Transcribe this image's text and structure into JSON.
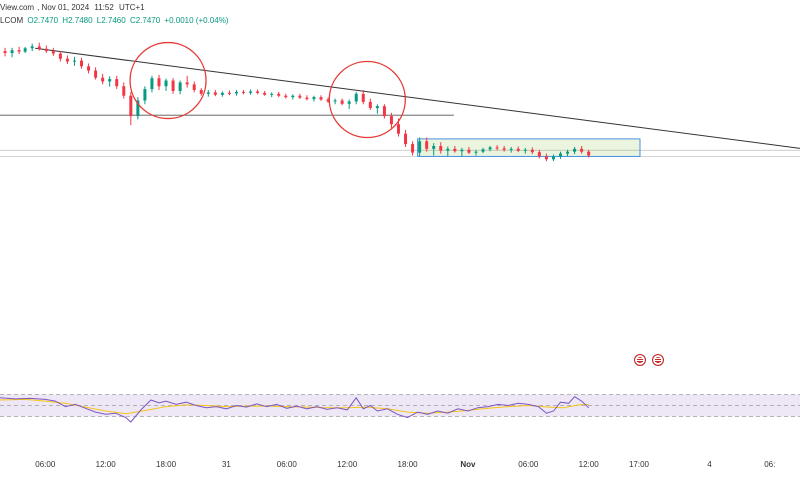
{
  "header": {
    "source": "View.com",
    "date": "Nov 01, 2024",
    "time": "11:52",
    "timezone": "UTC+1"
  },
  "ohlc": {
    "symbol": "LCOM",
    "open": "O2.7470",
    "high": "H2.7480",
    "low": "L2.7460",
    "close": "C2.7470",
    "change": "+0.0010 (+0.04%)"
  },
  "colors": {
    "up": "#089981",
    "down": "#f23645",
    "rsi": "#7e57c2",
    "rsi_ma": "#f5c518",
    "box": "#4a90e2",
    "circle": "#e53935"
  },
  "icons": [
    "us-flag-icon",
    "us-flag-icon"
  ],
  "chart_data": [
    {
      "type": "candlestick",
      "x_tick_labels": [
        "06:00",
        "12:00",
        "18:00",
        "31",
        "06:00",
        "12:00",
        "18:00",
        "Nov",
        "06:00",
        "12:00",
        "17:00",
        "4",
        "06:"
      ],
      "x_ticks_hours": [
        6,
        12,
        18,
        24,
        30,
        36,
        42,
        48,
        54,
        60,
        65,
        72,
        78
      ],
      "x_range_hours": [
        1.5,
        81
      ],
      "y_range": [
        2.733,
        2.7895
      ],
      "candles": [
        [
          2.0,
          2.7842,
          2.7849,
          2.7831,
          2.7838
        ],
        [
          2.7,
          2.7838,
          2.7849,
          2.7829,
          2.7844
        ],
        [
          3.4,
          2.7844,
          2.7851,
          2.7836,
          2.7841
        ],
        [
          4.0,
          2.7841,
          2.7851,
          2.7838,
          2.7848
        ],
        [
          4.7,
          2.7848,
          2.7858,
          2.7842,
          2.7852
        ],
        [
          5.4,
          2.7852,
          2.786,
          2.7843,
          2.7847
        ],
        [
          6.1,
          2.7847,
          2.7854,
          2.7838,
          2.7842
        ],
        [
          6.8,
          2.7842,
          2.7849,
          2.7832,
          2.7837
        ],
        [
          7.5,
          2.7837,
          2.7842,
          2.782,
          2.7826
        ],
        [
          8.2,
          2.7826,
          2.7833,
          2.7815,
          2.782
        ],
        [
          8.9,
          2.782,
          2.783,
          2.7811,
          2.7822
        ],
        [
          9.6,
          2.7822,
          2.7828,
          2.7805,
          2.781
        ],
        [
          10.3,
          2.781,
          2.7816,
          2.7795,
          2.7801
        ],
        [
          11.0,
          2.7801,
          2.7808,
          2.7782,
          2.7786
        ],
        [
          11.7,
          2.7786,
          2.7794,
          2.7772,
          2.7778
        ],
        [
          12.4,
          2.7778,
          2.7789,
          2.7767,
          2.7783
        ],
        [
          13.1,
          2.7783,
          2.779,
          2.7762,
          2.7768
        ],
        [
          13.8,
          2.7768,
          2.7776,
          2.7742,
          2.7748
        ],
        [
          14.5,
          2.7748,
          2.7756,
          2.7686,
          2.7705
        ],
        [
          15.2,
          2.7705,
          2.7745,
          2.7698,
          2.7738
        ],
        [
          15.9,
          2.7738,
          2.7768,
          2.773,
          2.7762
        ],
        [
          16.6,
          2.7762,
          2.779,
          2.7755,
          2.7785
        ],
        [
          17.3,
          2.7785,
          2.7792,
          2.776,
          2.7768
        ],
        [
          18.0,
          2.7768,
          2.7784,
          2.7758,
          2.778
        ],
        [
          18.7,
          2.778,
          2.7785,
          2.7752,
          2.7758
        ],
        [
          19.4,
          2.7758,
          2.778,
          2.7751,
          2.7776
        ],
        [
          20.1,
          2.7776,
          2.779,
          2.7765,
          2.7772
        ],
        [
          20.8,
          2.7772,
          2.7778,
          2.7755,
          2.776
        ],
        [
          21.5,
          2.776,
          2.7764,
          2.7748,
          2.7752
        ],
        [
          22.2,
          2.7752,
          2.776,
          2.7746,
          2.7755
        ],
        [
          22.9,
          2.7755,
          2.776,
          2.7747,
          2.775
        ],
        [
          23.6,
          2.775,
          2.7757,
          2.7746,
          2.7754
        ],
        [
          24.3,
          2.7754,
          2.7759,
          2.7749,
          2.7753
        ],
        [
          25.0,
          2.7753,
          2.776,
          2.7748,
          2.7756
        ],
        [
          25.7,
          2.7756,
          2.776,
          2.7751,
          2.7754
        ],
        [
          26.4,
          2.7754,
          2.7761,
          2.775,
          2.7757
        ],
        [
          27.1,
          2.7757,
          2.7761,
          2.7751,
          2.7754
        ],
        [
          27.8,
          2.7754,
          2.7758,
          2.7748,
          2.775
        ],
        [
          28.5,
          2.775,
          2.7755,
          2.7745,
          2.7752
        ],
        [
          29.2,
          2.7752,
          2.7756,
          2.7745,
          2.7748
        ],
        [
          29.9,
          2.7748,
          2.7752,
          2.7742,
          2.7745
        ],
        [
          30.6,
          2.7745,
          2.7751,
          2.774,
          2.7748
        ],
        [
          31.3,
          2.7748,
          2.7752,
          2.7741,
          2.7744
        ],
        [
          32.0,
          2.7744,
          2.7749,
          2.7738,
          2.7741
        ],
        [
          32.7,
          2.7741,
          2.7748,
          2.7736,
          2.7745
        ],
        [
          33.4,
          2.7745,
          2.7749,
          2.7737,
          2.774
        ],
        [
          34.1,
          2.774,
          2.7744,
          2.7733,
          2.7736
        ],
        [
          34.8,
          2.7736,
          2.7742,
          2.773,
          2.7738
        ],
        [
          35.5,
          2.7738,
          2.7742,
          2.7728,
          2.7731
        ],
        [
          36.2,
          2.7731,
          2.774,
          2.772,
          2.7736
        ],
        [
          36.9,
          2.7736,
          2.7756,
          2.773,
          2.7752
        ],
        [
          37.6,
          2.7752,
          2.776,
          2.773,
          2.7735
        ],
        [
          38.3,
          2.7735,
          2.7742,
          2.7718,
          2.7722
        ],
        [
          39.0,
          2.7722,
          2.773,
          2.771,
          2.7726
        ],
        [
          39.7,
          2.7726,
          2.773,
          2.77,
          2.7705
        ],
        [
          40.4,
          2.7705,
          2.7712,
          2.768,
          2.7688
        ],
        [
          41.1,
          2.7688,
          2.77,
          2.7662,
          2.7668
        ],
        [
          41.8,
          2.7668,
          2.7676,
          2.764,
          2.7646
        ],
        [
          42.5,
          2.7646,
          2.7652,
          2.7622,
          2.7628
        ],
        [
          43.2,
          2.7628,
          2.766,
          2.762,
          2.7652
        ],
        [
          43.9,
          2.7652,
          2.766,
          2.763,
          2.7636
        ],
        [
          44.6,
          2.7636,
          2.7648,
          2.7622,
          2.7642
        ],
        [
          45.3,
          2.7642,
          2.765,
          2.7626,
          2.7632
        ],
        [
          46.0,
          2.7632,
          2.7641,
          2.762,
          2.7636
        ],
        [
          46.7,
          2.7636,
          2.7642,
          2.7628,
          2.7631
        ],
        [
          47.4,
          2.7631,
          2.7638,
          2.762,
          2.7634
        ],
        [
          48.1,
          2.7634,
          2.764,
          2.7625,
          2.7628
        ],
        [
          48.8,
          2.7628,
          2.7634,
          2.7622,
          2.763
        ],
        [
          49.5,
          2.763,
          2.7638,
          2.7627,
          2.7635
        ],
        [
          50.2,
          2.7635,
          2.7642,
          2.7631,
          2.7639
        ],
        [
          50.9,
          2.7639,
          2.7644,
          2.7633,
          2.7637
        ],
        [
          51.6,
          2.7637,
          2.7642,
          2.763,
          2.7634
        ],
        [
          52.3,
          2.7634,
          2.764,
          2.7628,
          2.7636
        ],
        [
          53.0,
          2.7636,
          2.7641,
          2.7629,
          2.7632
        ],
        [
          53.7,
          2.7632,
          2.7638,
          2.7626,
          2.7634
        ],
        [
          54.4,
          2.7634,
          2.7639,
          2.7625,
          2.7629
        ],
        [
          55.1,
          2.7629,
          2.7634,
          2.7616,
          2.762
        ],
        [
          55.8,
          2.762,
          2.7626,
          2.761,
          2.7614
        ],
        [
          56.5,
          2.7614,
          2.7624,
          2.761,
          2.762
        ],
        [
          57.2,
          2.762,
          2.763,
          2.7615,
          2.7626
        ],
        [
          57.9,
          2.7626,
          2.7634,
          2.762,
          2.763
        ],
        [
          58.6,
          2.763,
          2.764,
          2.7625,
          2.7636
        ],
        [
          59.3,
          2.7636,
          2.7642,
          2.7626,
          2.763
        ],
        [
          60.0,
          2.763,
          2.7634,
          2.7618,
          2.7622
        ]
      ],
      "rsi_y_range": [
        0,
        100
      ],
      "rsi": [
        [
          1.5,
          64
        ],
        [
          3,
          62
        ],
        [
          4.5,
          63
        ],
        [
          6,
          61
        ],
        [
          7,
          58
        ],
        [
          8,
          48
        ],
        [
          9,
          52
        ],
        [
          10,
          45
        ],
        [
          11,
          38
        ],
        [
          12,
          34
        ],
        [
          13,
          36
        ],
        [
          14,
          28
        ],
        [
          14.5,
          20
        ],
        [
          15.5,
          42
        ],
        [
          16.5,
          60
        ],
        [
          17.3,
          55
        ],
        [
          18,
          58
        ],
        [
          19,
          52
        ],
        [
          20,
          56
        ],
        [
          21,
          50
        ],
        [
          22,
          46
        ],
        [
          23,
          48
        ],
        [
          24,
          44
        ],
        [
          25,
          50
        ],
        [
          26,
          47
        ],
        [
          27,
          53
        ],
        [
          28,
          48
        ],
        [
          29,
          52
        ],
        [
          30,
          45
        ],
        [
          31,
          49
        ],
        [
          32,
          44
        ],
        [
          33,
          48
        ],
        [
          34,
          43
        ],
        [
          35,
          46
        ],
        [
          36,
          42
        ],
        [
          36.9,
          64
        ],
        [
          37.6,
          44
        ],
        [
          38.3,
          50
        ],
        [
          39,
          40
        ],
        [
          40,
          44
        ],
        [
          41,
          34
        ],
        [
          42,
          28
        ],
        [
          43,
          38
        ],
        [
          44,
          34
        ],
        [
          45,
          40
        ],
        [
          46,
          36
        ],
        [
          47,
          44
        ],
        [
          48,
          40
        ],
        [
          49,
          46
        ],
        [
          50,
          48
        ],
        [
          51,
          52
        ],
        [
          52,
          50
        ],
        [
          53,
          54
        ],
        [
          54,
          52
        ],
        [
          55,
          48
        ],
        [
          55.8,
          36
        ],
        [
          56.5,
          40
        ],
        [
          57.2,
          56
        ],
        [
          58,
          54
        ],
        [
          58.6,
          66
        ],
        [
          59.3,
          58
        ],
        [
          60,
          46
        ]
      ],
      "rsi_ma": [
        [
          1.5,
          60
        ],
        [
          4,
          61
        ],
        [
          6,
          58
        ],
        [
          8,
          54
        ],
        [
          10,
          47
        ],
        [
          12,
          40
        ],
        [
          14,
          35
        ],
        [
          16,
          41
        ],
        [
          18,
          48
        ],
        [
          20,
          51
        ],
        [
          22,
          50
        ],
        [
          24,
          48
        ],
        [
          26,
          49
        ],
        [
          28,
          49
        ],
        [
          30,
          48
        ],
        [
          32,
          47
        ],
        [
          34,
          46
        ],
        [
          36,
          46
        ],
        [
          38,
          47
        ],
        [
          40,
          44
        ],
        [
          42,
          38
        ],
        [
          44,
          36
        ],
        [
          46,
          38
        ],
        [
          48,
          41
        ],
        [
          50,
          45
        ],
        [
          52,
          48
        ],
        [
          54,
          50
        ],
        [
          56,
          47
        ],
        [
          57.5,
          46
        ],
        [
          59,
          51
        ],
        [
          60,
          52
        ]
      ],
      "rsi_bands": [
        70,
        50,
        30
      ],
      "horizontal_line": {
        "value": 2.7707,
        "x_end_hours": 46.6
      },
      "support_line": {
        "value": 2.7633
      },
      "bottom_line": {
        "value": 2.762
      },
      "trendline": {
        "x1": 5,
        "y1": 2.7848,
        "x2": 81,
        "y2": 2.7637
      },
      "highlight_box": {
        "x1": 43.0,
        "x2": 65.1,
        "y_low": 2.762,
        "y_high": 2.7657
      },
      "circles": [
        {
          "x": 18.2,
          "y": 2.778
        },
        {
          "x": 38.0,
          "y": 2.774
        }
      ]
    }
  ]
}
